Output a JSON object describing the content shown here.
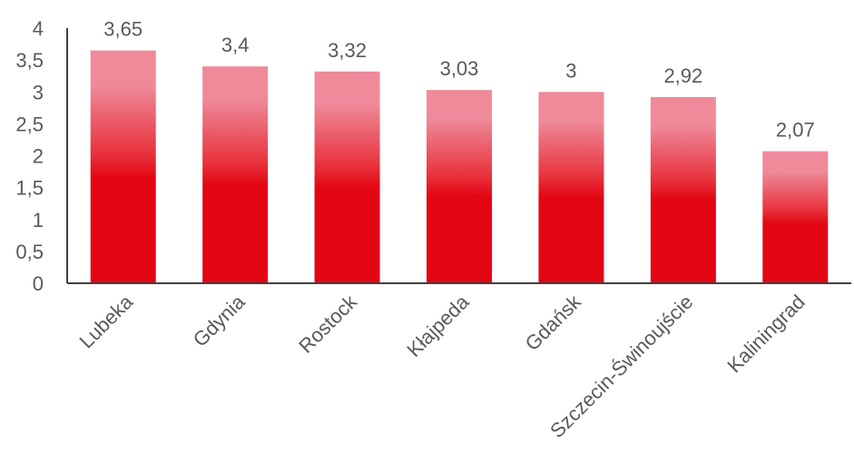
{
  "chart_data": {
    "type": "bar",
    "categories": [
      "Lubeka",
      "Gdynia",
      "Rostock",
      "Kłajpeda",
      "Gdańsk",
      "Szczecin-Świnoujście",
      "Kaliningrad"
    ],
    "values": [
      3.65,
      3.4,
      3.32,
      3.03,
      3,
      2.92,
      2.07
    ],
    "value_labels": [
      "3,65",
      "3,4",
      "3,32",
      "3,03",
      "3",
      "2,92",
      "2,07"
    ],
    "title": "",
    "xlabel": "",
    "ylabel": "",
    "ylim": [
      0,
      4
    ],
    "yticks": [
      0,
      0.5,
      1,
      1.5,
      2,
      2.5,
      3,
      3.5,
      4
    ],
    "ytick_labels": [
      "0",
      "0,5",
      "1",
      "1,5",
      "2",
      "2,5",
      "3",
      "3,5",
      "4"
    ],
    "grid": false,
    "legend": "none",
    "colors": {
      "bar_top": "#ee8a9a",
      "bar_bottom": "#e30613",
      "axis": "#404040",
      "text": "#595959"
    }
  }
}
